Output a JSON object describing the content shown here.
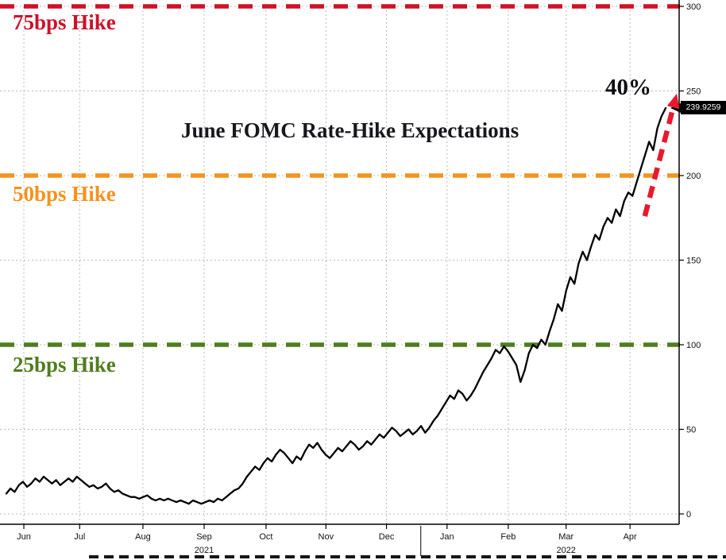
{
  "chart_data": {
    "type": "line",
    "title": "June FOMC Rate-Hike Expectations",
    "ylim": [
      0,
      300
    ],
    "y_ticks": [
      0,
      50,
      100,
      150,
      200,
      250,
      300
    ],
    "grid": true,
    "legend": "none",
    "x_months": [
      {
        "label": "Jun",
        "t": 0.026
      },
      {
        "label": "Jul",
        "t": 0.109
      },
      {
        "label": "Aug",
        "t": 0.203
      },
      {
        "label": "Sep",
        "t": 0.294
      },
      {
        "label": "Oct",
        "t": 0.386
      },
      {
        "label": "Nov",
        "t": 0.475
      },
      {
        "label": "Dec",
        "t": 0.565
      },
      {
        "label": "Jan",
        "t": 0.655
      },
      {
        "label": "Feb",
        "t": 0.746
      },
      {
        "label": "Mar",
        "t": 0.832
      },
      {
        "label": "Apr",
        "t": 0.927
      }
    ],
    "year_labels": [
      {
        "label": "2021",
        "t": 0.294
      },
      {
        "label": "2022",
        "t": 0.832
      }
    ],
    "year_divider_t": 0.616,
    "reference_lines": [
      {
        "label": "75bps Hike",
        "value": 300,
        "color": "#cd1228"
      },
      {
        "label": "50bps Hike",
        "value": 200,
        "color": "#f6921e"
      },
      {
        "label": "25bps Hike",
        "value": 100,
        "color": "#4f7d1f"
      }
    ],
    "series": [
      {
        "name": "June FOMC rate-hike expectations",
        "color": "#000000",
        "end_t": 0.98,
        "values": [
          12,
          15,
          13,
          17,
          19,
          16,
          18,
          21,
          19,
          22,
          20,
          18,
          20,
          17,
          19,
          21,
          19,
          22,
          20,
          18,
          16,
          17,
          15,
          16,
          18,
          15,
          13,
          14,
          12,
          11,
          10,
          10,
          9,
          10,
          11,
          9,
          8,
          9,
          8,
          9,
          8,
          7,
          8,
          7,
          6,
          8,
          7,
          6,
          7,
          8,
          7,
          9,
          8,
          10,
          12,
          14,
          15,
          18,
          22,
          25,
          28,
          26,
          30,
          33,
          31,
          35,
          38,
          36,
          33,
          30,
          34,
          32,
          37,
          41,
          39,
          42,
          38,
          35,
          33,
          36,
          39,
          37,
          40,
          43,
          41,
          38,
          40,
          43,
          41,
          44,
          47,
          45,
          48,
          51,
          49,
          46,
          48,
          50,
          47,
          49,
          52,
          48,
          51,
          55,
          58,
          62,
          66,
          70,
          68,
          73,
          71,
          67,
          70,
          74,
          79,
          84,
          88,
          92,
          97,
          95,
          99,
          96,
          92,
          88,
          78,
          85,
          95,
          100,
          98,
          103,
          100,
          108,
          115,
          124,
          120,
          132,
          140,
          136,
          148,
          155,
          150,
          158,
          165,
          162,
          170,
          175,
          172,
          180,
          176,
          185,
          190,
          188,
          196,
          204,
          212,
          220,
          215,
          228,
          235,
          239.9259
        ]
      }
    ],
    "last_value": 239.9259,
    "last_value_label": "239.9259",
    "annotation": {
      "label": "40%",
      "arrow": {
        "from_t": 0.949,
        "from_v": 176,
        "to_t": 0.993,
        "to_v": 243,
        "color": "#e8192c"
      }
    }
  }
}
